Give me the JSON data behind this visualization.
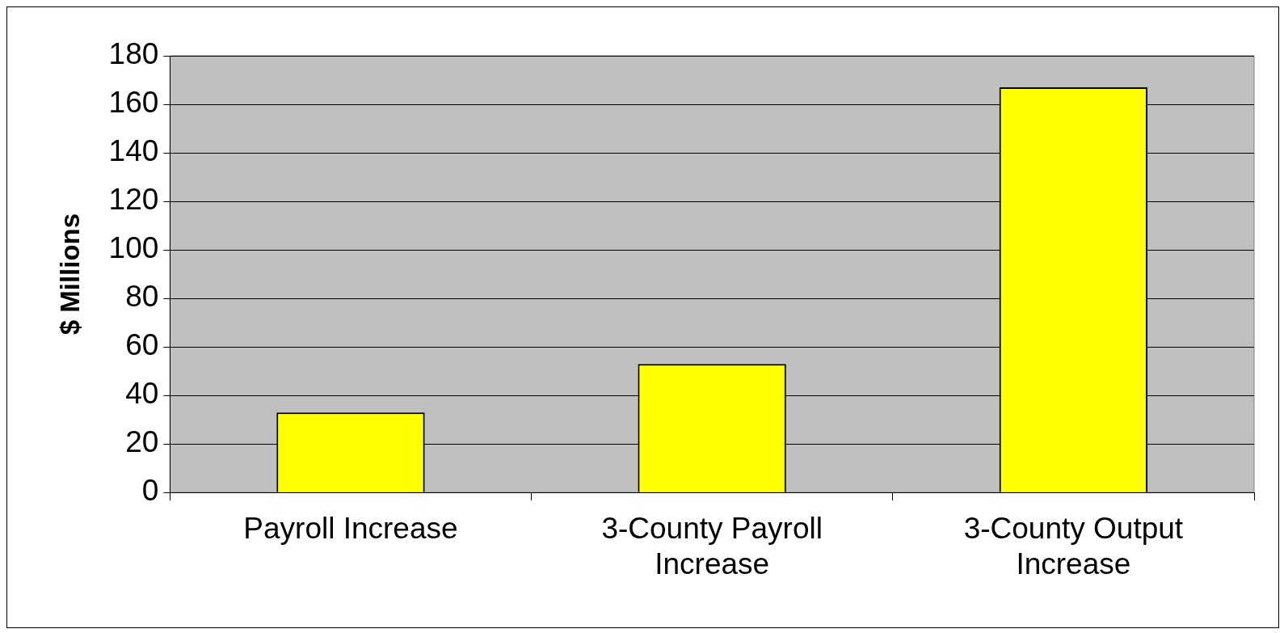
{
  "chart_data": {
    "type": "bar",
    "ylabel": "$ Millions",
    "categories": [
      "Payroll Increase",
      "3-County Payroll Increase",
      "3-County Output Increase"
    ],
    "values": [
      33,
      53,
      167
    ],
    "color": "#ffff00",
    "ylim": [
      0,
      180
    ],
    "yticks": [
      0,
      20,
      40,
      60,
      80,
      100,
      120,
      140,
      160,
      180
    ],
    "grid": "y",
    "legend": false
  }
}
